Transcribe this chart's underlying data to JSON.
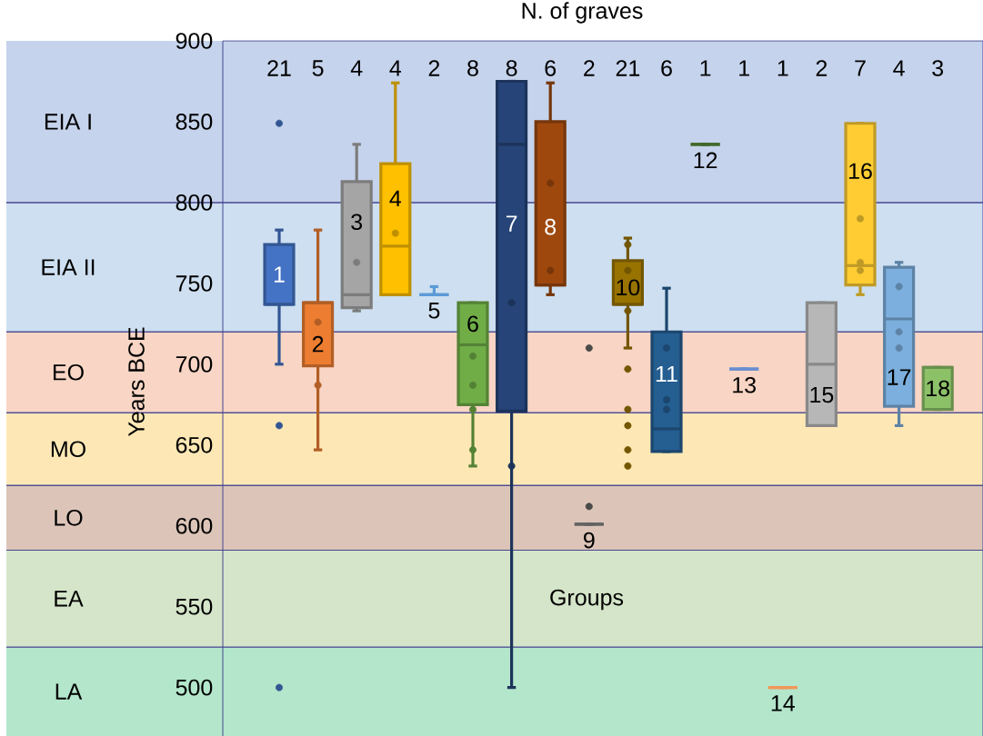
{
  "chart_data": {
    "type": "box",
    "xlabel": "N. of graves",
    "ylabel": "Years BCE",
    "categories": [
      "21",
      "5",
      "4",
      "4",
      "2",
      "8",
      "8",
      "6",
      "2",
      "21",
      "6",
      "1",
      "1",
      "1",
      "2",
      "7",
      "4",
      "3"
    ],
    "colors": [
      "#4472c4",
      "#ed7d31",
      "#a5a5a5",
      "#ffc000",
      "#5b9bd5",
      "#70ad47",
      "#264478",
      "#9e480e",
      "#636363",
      "#997300",
      "#255e91",
      "#43682b",
      "#698ed0",
      "#f1975a",
      "#b7b7b7",
      "#ffcd33",
      "#7cafdd",
      "#8cc168"
    ],
    "boxes": [
      {
        "low": 700,
        "q1": 737,
        "median": 737,
        "q3": 774,
        "high": 783,
        "outliers": [
          849,
          662,
          500
        ]
      },
      {
        "low": 647,
        "q1": 699,
        "median": 738,
        "q3": 738,
        "high": 783,
        "outliers": [
          726,
          687
        ]
      },
      {
        "low": 733,
        "q1": 735,
        "median": 743,
        "q3": 813,
        "high": 836,
        "outliers": [
          763
        ]
      },
      {
        "low": 743,
        "q1": 743,
        "median": 773,
        "q3": 824,
        "high": 874,
        "outliers": [
          781
        ]
      },
      {
        "low": 743,
        "q1": 743,
        "median": 743,
        "q3": 743,
        "high": 748
      },
      {
        "low": 637,
        "q1": 675,
        "median": 712,
        "q3": 738,
        "high": 738,
        "outliers": [
          705,
          687,
          672,
          647
        ]
      },
      {
        "low": 500,
        "q1": 671,
        "median": 836,
        "q3": 875,
        "high": 875,
        "outliers": [
          738,
          637
        ]
      },
      {
        "low": 743,
        "q1": 749,
        "median": 749,
        "q3": 850,
        "high": 874,
        "outliers": [
          812,
          758
        ]
      },
      {
        "low": 601,
        "q1": 601,
        "median": 601,
        "q3": 601,
        "high": 601,
        "outliers": [
          710,
          612
        ]
      },
      {
        "low": 710,
        "q1": 737,
        "median": 737,
        "q3": 764,
        "high": 778,
        "outliers": [
          774,
          758,
          733,
          697,
          672,
          662,
          647,
          637
        ]
      },
      {
        "low": 646,
        "q1": 646,
        "median": 660,
        "q3": 720,
        "high": 747,
        "outliers": [
          710,
          678,
          672
        ]
      },
      {
        "low": 836,
        "q1": 836,
        "median": 836,
        "q3": 836,
        "high": 836
      },
      {
        "low": 697,
        "q1": 697,
        "median": 697,
        "q3": 697,
        "high": 697
      },
      {
        "low": 500,
        "q1": 500,
        "median": 500,
        "q3": 500,
        "high": 500
      },
      {
        "low": 662,
        "q1": 662,
        "median": 700,
        "q3": 738,
        "high": 738
      },
      {
        "low": 743,
        "q1": 749,
        "median": 761,
        "q3": 849,
        "high": 849,
        "outliers": [
          790,
          763,
          758
        ]
      },
      {
        "low": 662,
        "q1": 674,
        "median": 728,
        "q3": 760,
        "high": 763,
        "outliers": [
          748,
          720,
          710
        ]
      },
      {
        "low": 672,
        "q1": 672,
        "median": 698,
        "q3": 698,
        "high": 698
      }
    ],
    "ylim": [
      470,
      900
    ],
    "yticks": [
      500,
      550,
      600,
      650,
      700,
      750,
      800,
      850,
      900
    ],
    "bands": [
      {
        "axis": "y",
        "from": 800,
        "to": 900,
        "label": "EIA I",
        "color": "#c5d3ec"
      },
      {
        "axis": "y",
        "from": 720,
        "to": 800,
        "label": "EIA II",
        "color": "#cddff0"
      },
      {
        "axis": "y",
        "from": 670,
        "to": 720,
        "label": "EO",
        "color": "#f8d5c4"
      },
      {
        "axis": "y",
        "from": 625,
        "to": 670,
        "label": "MO",
        "color": "#fde8b5"
      },
      {
        "axis": "y",
        "from": 585,
        "to": 625,
        "label": "LO",
        "color": "#dcc5b8"
      },
      {
        "axis": "y",
        "from": 525,
        "to": 585,
        "label": "EA",
        "color": "#d5e5c9"
      },
      {
        "axis": "y",
        "from": 470,
        "to": 525,
        "label": "LA",
        "color": "#b3e6cb"
      }
    ],
    "annotations": [
      "1",
      "2",
      "3",
      "4",
      "5",
      "6",
      "7",
      "8",
      "9",
      "10",
      "11",
      "12",
      "13",
      "14",
      "15",
      "16",
      "17",
      "18",
      "Groups"
    ]
  }
}
